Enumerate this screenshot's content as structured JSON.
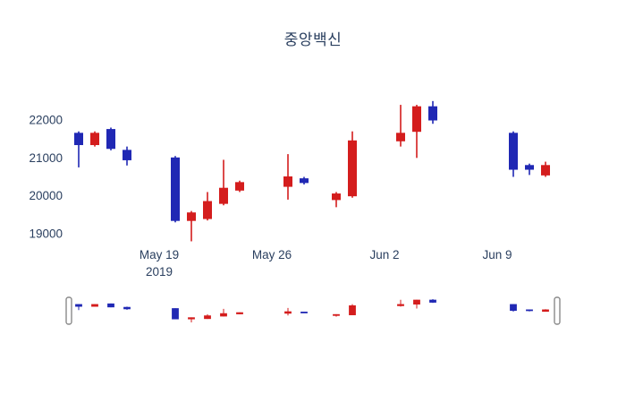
{
  "chart_data": {
    "type": "candlestick",
    "title": "중앙백신",
    "y_ticks": [
      19000,
      20000,
      21000,
      22000
    ],
    "x_ticks": [
      {
        "date": "2019-05-19",
        "label": "May 19",
        "sub": "2019"
      },
      {
        "date": "2019-05-26",
        "label": "May 26",
        "sub": ""
      },
      {
        "date": "2019-06-02",
        "label": "Jun 2",
        "sub": ""
      },
      {
        "date": "2019-06-09",
        "label": "Jun 9",
        "sub": ""
      }
    ],
    "ylim": [
      18700,
      22600
    ],
    "grid": false,
    "legend": "none",
    "colors": {
      "up": "#d41d1d",
      "down": "#2028b4",
      "axis_text": "#2a3f5f"
    },
    "candles": [
      {
        "date": "2019-05-14",
        "open": 21650,
        "high": 21700,
        "low": 20750,
        "close": 21350
      },
      {
        "date": "2019-05-15",
        "open": 21350,
        "high": 21700,
        "low": 21300,
        "close": 21650
      },
      {
        "date": "2019-05-16",
        "open": 21750,
        "high": 21800,
        "low": 21200,
        "close": 21250
      },
      {
        "date": "2019-05-17",
        "open": 21200,
        "high": 21300,
        "low": 20800,
        "close": 20950
      },
      {
        "date": "2019-05-20",
        "open": 21000,
        "high": 21050,
        "low": 19300,
        "close": 19350
      },
      {
        "date": "2019-05-21",
        "open": 19350,
        "high": 19600,
        "low": 18800,
        "close": 19550
      },
      {
        "date": "2019-05-22",
        "open": 19400,
        "high": 20100,
        "low": 19350,
        "close": 19850
      },
      {
        "date": "2019-05-23",
        "open": 19800,
        "high": 20950,
        "low": 19750,
        "close": 20200
      },
      {
        "date": "2019-05-24",
        "open": 20150,
        "high": 20400,
        "low": 20100,
        "close": 20350
      },
      {
        "date": "2019-05-27",
        "open": 20250,
        "high": 21100,
        "low": 19900,
        "close": 20500
      },
      {
        "date": "2019-05-28",
        "open": 20450,
        "high": 20500,
        "low": 20300,
        "close": 20350
      },
      {
        "date": "2019-05-30",
        "open": 19900,
        "high": 20100,
        "low": 19700,
        "close": 20050
      },
      {
        "date": "2019-05-31",
        "open": 20000,
        "high": 21700,
        "low": 19950,
        "close": 21450
      },
      {
        "date": "2019-06-03",
        "open": 21450,
        "high": 22400,
        "low": 21300,
        "close": 21650
      },
      {
        "date": "2019-06-04",
        "open": 21700,
        "high": 22400,
        "low": 21000,
        "close": 22350
      },
      {
        "date": "2019-06-05",
        "open": 22350,
        "high": 22500,
        "low": 21900,
        "close": 22000
      },
      {
        "date": "2019-06-10",
        "open": 21650,
        "high": 21700,
        "low": 20500,
        "close": 20700
      },
      {
        "date": "2019-06-11",
        "open": 20800,
        "high": 20850,
        "low": 20550,
        "close": 20700
      },
      {
        "date": "2019-06-12",
        "open": 20550,
        "high": 20900,
        "low": 20500,
        "close": 20800
      }
    ]
  },
  "rangeslider": {
    "visible": true,
    "handle_left": "[",
    "handle_right": "]"
  }
}
